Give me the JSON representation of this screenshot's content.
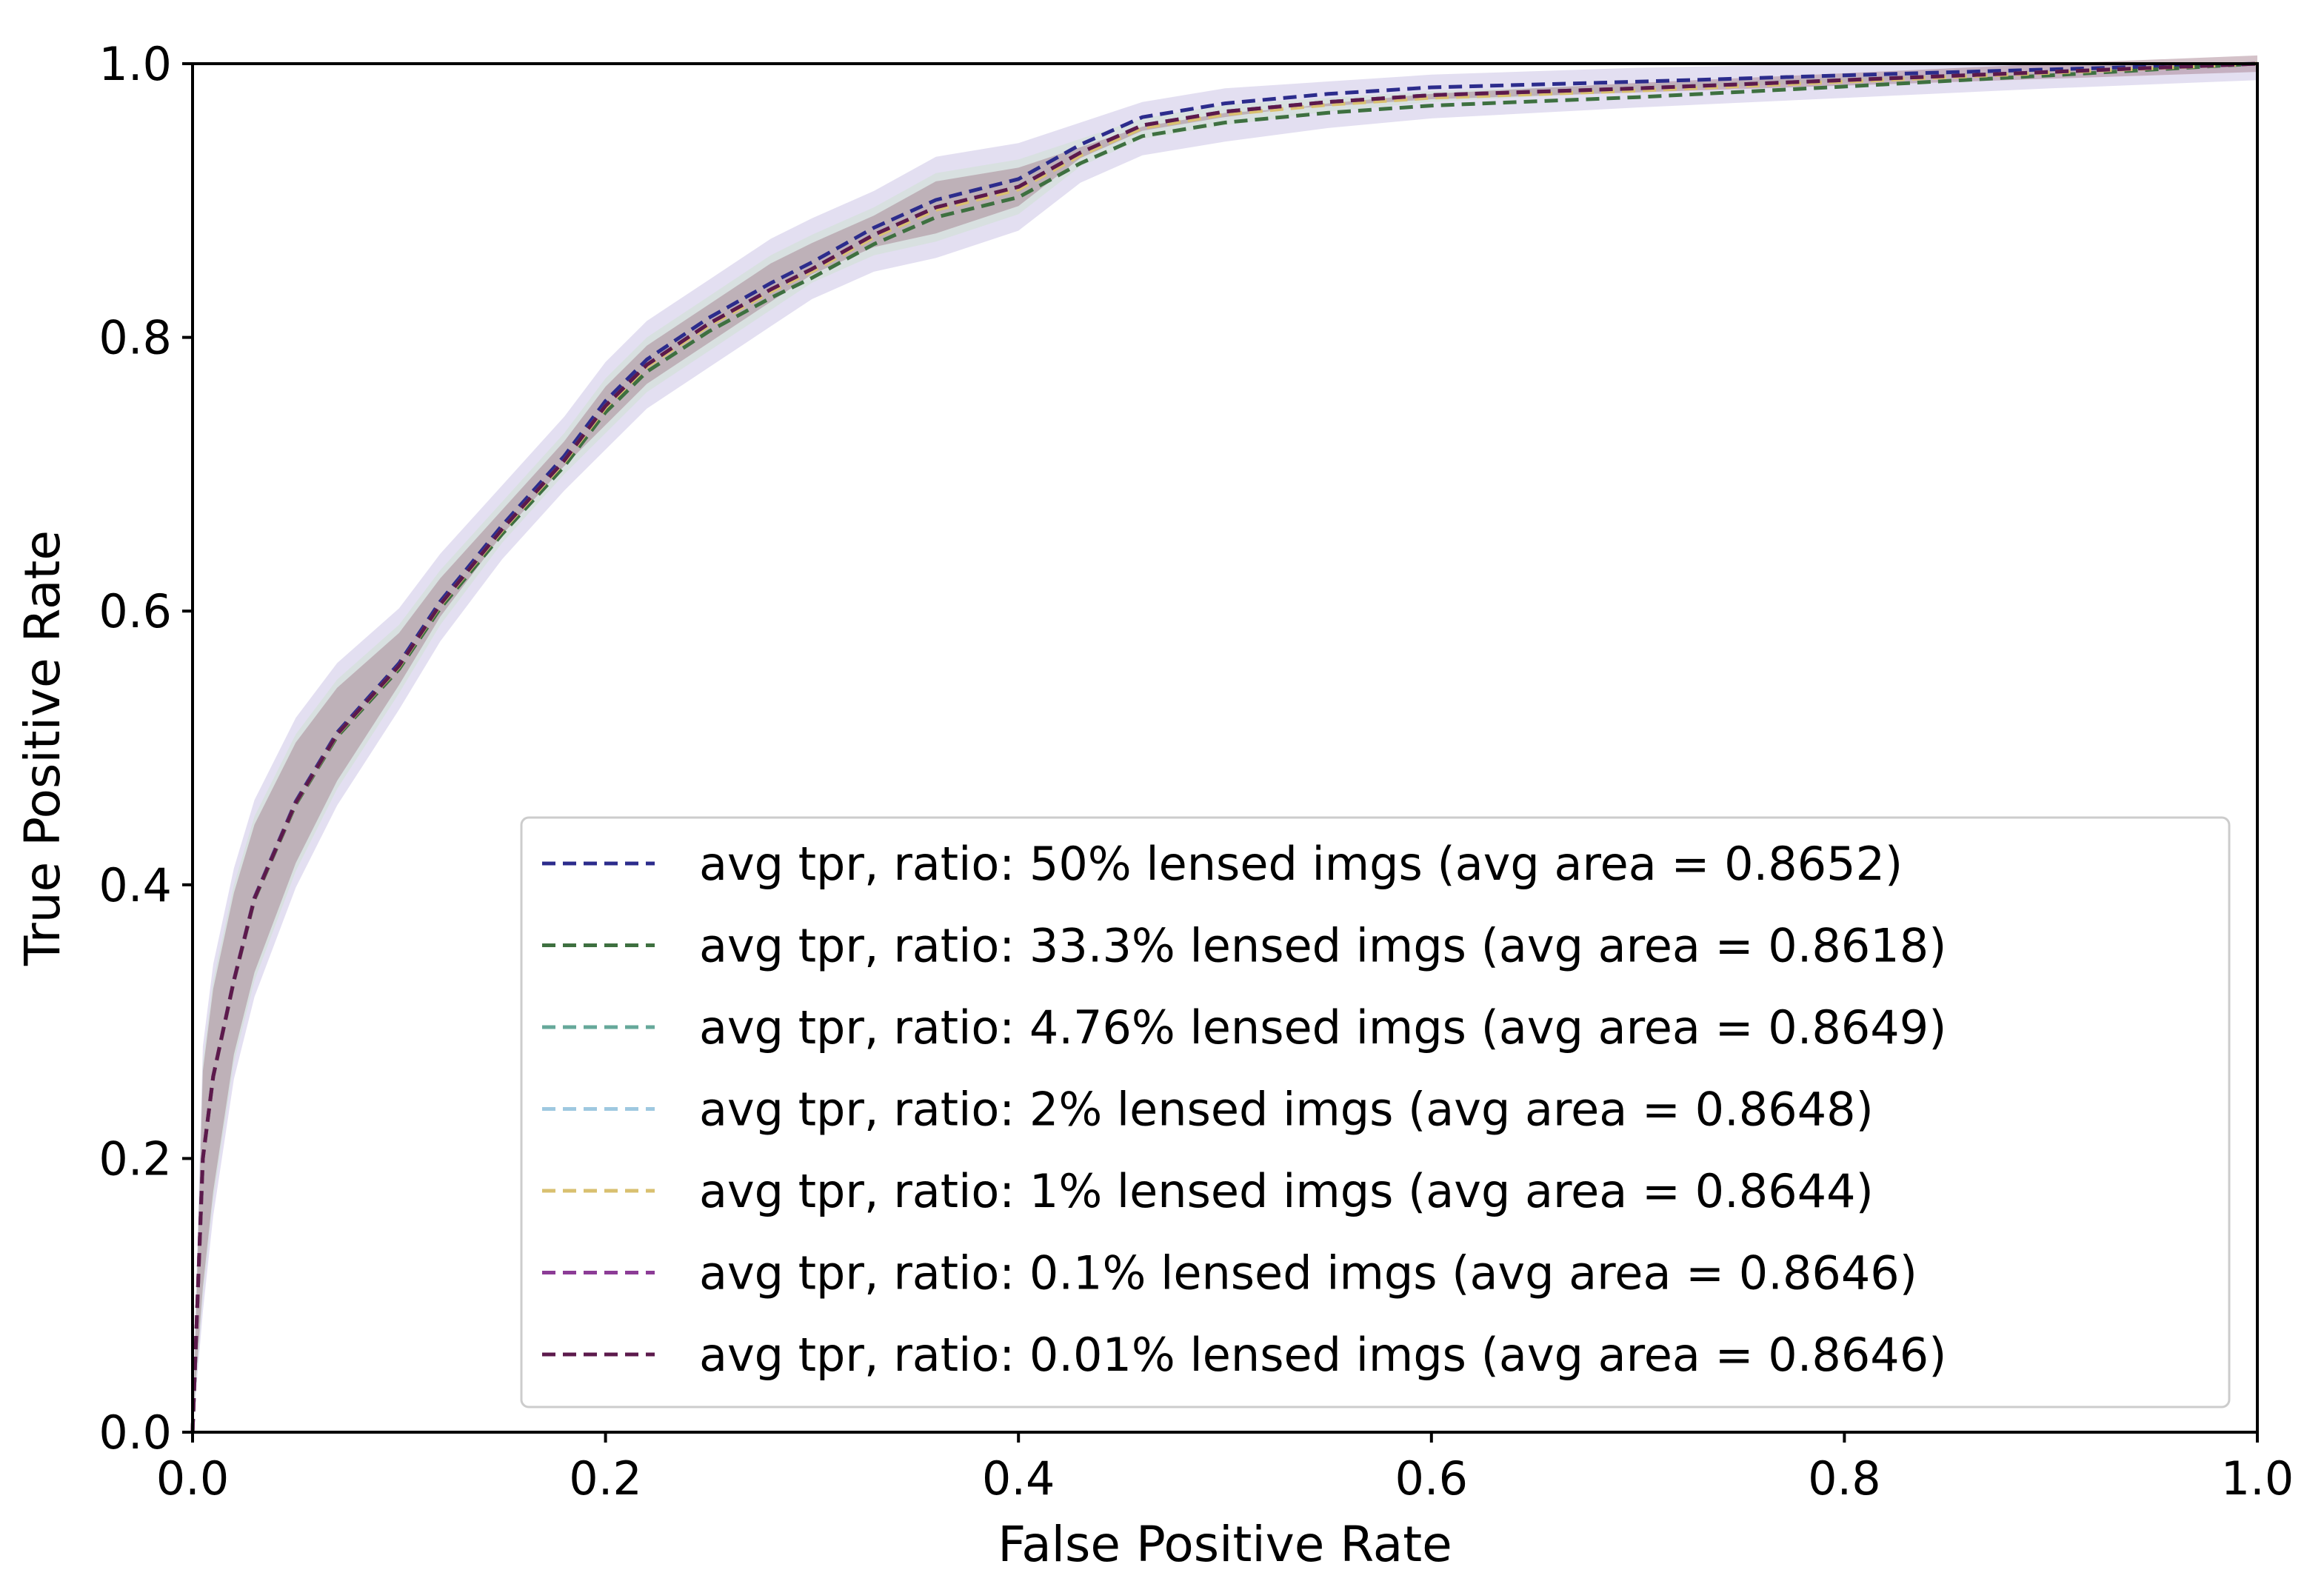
{
  "chart_data": {
    "type": "line",
    "title": "",
    "xlabel": "False Positive Rate",
    "ylabel": "True Positive Rate",
    "xlim": [
      0.0,
      1.0
    ],
    "ylim": [
      0.0,
      1.0
    ],
    "xticks": [
      "0.0",
      "0.2",
      "0.4",
      "0.6",
      "0.8",
      "1.0"
    ],
    "yticks": [
      "0.0",
      "0.2",
      "0.4",
      "0.6",
      "0.8",
      "1.0"
    ],
    "grid": false,
    "legend_position": "lower-right",
    "x": [
      0.0,
      0.005,
      0.01,
      0.02,
      0.03,
      0.05,
      0.07,
      0.1,
      0.12,
      0.15,
      0.18,
      0.2,
      0.22,
      0.25,
      0.28,
      0.3,
      0.33,
      0.36,
      0.4,
      0.43,
      0.46,
      0.5,
      0.55,
      0.6,
      0.7,
      0.8,
      0.9,
      1.0
    ],
    "band": {
      "lower": [
        0.0,
        0.1,
        0.17,
        0.27,
        0.33,
        0.41,
        0.47,
        0.54,
        0.59,
        0.65,
        0.7,
        0.73,
        0.76,
        0.79,
        0.82,
        0.84,
        0.86,
        0.87,
        0.89,
        0.925,
        0.945,
        0.955,
        0.965,
        0.972,
        0.98,
        0.987,
        0.994,
        1.0
      ],
      "upper": [
        0.0,
        0.27,
        0.33,
        0.4,
        0.45,
        0.51,
        0.55,
        0.59,
        0.63,
        0.68,
        0.73,
        0.77,
        0.8,
        0.83,
        0.86,
        0.875,
        0.895,
        0.92,
        0.93,
        0.945,
        0.96,
        0.97,
        0.975,
        0.98,
        0.985,
        0.99,
        0.995,
        1.0
      ]
    },
    "series": [
      {
        "name": "avg tpr, ratio: 50% lensed imgs (avg area = 0.8652)",
        "color": "#2c2c8c",
        "dy": 0.006
      },
      {
        "name": "avg tpr, ratio: 33.3% lensed imgs (avg area = 0.8618)",
        "color": "#3e7040",
        "dy": -0.008
      },
      {
        "name": "avg tpr, ratio: 4.76% lensed imgs (avg area = 0.8649)",
        "color": "#66a89a",
        "dy": 0.0
      },
      {
        "name": "avg tpr, ratio: 2% lensed imgs (avg area = 0.8648)",
        "color": "#9ec8e0",
        "dy": 0.0
      },
      {
        "name": "avg tpr, ratio: 1% lensed imgs (avg area = 0.8644)",
        "color": "#d9c070",
        "dy": -0.002
      },
      {
        "name": "avg tpr, ratio: 0.1% lensed imgs (avg area = 0.8646)",
        "color": "#8c3c96",
        "dy": 0.0
      },
      {
        "name": "avg tpr, ratio: 0.01% lensed imgs (avg area = 0.8646)",
        "color": "#5c1a4c",
        "dy": 0.0
      }
    ],
    "base_tpr": [
      0.0,
      0.2,
      0.26,
      0.33,
      0.39,
      0.46,
      0.51,
      0.56,
      0.605,
      0.66,
      0.71,
      0.75,
      0.78,
      0.81,
      0.835,
      0.85,
      0.875,
      0.895,
      0.91,
      0.935,
      0.955,
      0.965,
      0.972,
      0.977,
      0.982,
      0.988,
      0.994,
      1.0
    ]
  }
}
